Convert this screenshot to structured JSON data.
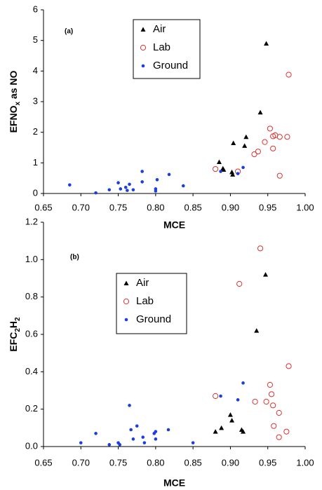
{
  "chart_data": [
    {
      "type": "scatter",
      "annotation": "(a)",
      "xlabel": "MCE",
      "ylabel": [
        {
          "text": "EFNO"
        },
        {
          "text": "x",
          "sub": true
        },
        {
          "text": " as NO"
        }
      ],
      "xlim": [
        0.65,
        1.0
      ],
      "xticks": [
        0.65,
        {
          "value": 0.7,
          "label": "0.70"
        },
        0.75,
        {
          "value": 0.8,
          "label": "0.80"
        },
        0.85,
        {
          "value": 0.9,
          "label": "0.90"
        },
        0.95,
        {
          "value": 1.0,
          "label": "1.00"
        }
      ],
      "ylim": [
        0,
        6
      ],
      "yticks": [
        0,
        1,
        2,
        3,
        4,
        5,
        6
      ],
      "series": [
        {
          "name": "Air",
          "color": "#000000",
          "marker": "triangle",
          "x": [
            0.885,
            0.891,
            0.89,
            0.904,
            0.902,
            0.903,
            0.919,
            0.921,
            0.94,
            0.948
          ],
          "values": [
            1.03,
            0.78,
            0.82,
            1.65,
            0.7,
            0.62,
            1.56,
            1.85,
            2.65,
            4.9
          ]
        },
        {
          "name": "Lab",
          "color": "#e03030",
          "marker": "circle-open",
          "x": [
            0.88,
            0.91,
            0.932,
            0.937,
            0.946,
            0.953,
            0.957,
            0.957,
            0.96,
            0.966,
            0.966,
            0.976,
            0.978
          ],
          "values": [
            0.8,
            0.72,
            1.28,
            1.37,
            1.68,
            2.12,
            1.47,
            1.87,
            1.9,
            1.85,
            0.58,
            1.85,
            3.88
          ]
        },
        {
          "name": "Ground",
          "color": "#1a3fe0",
          "marker": "dot",
          "x": [
            0.685,
            0.72,
            0.738,
            0.75,
            0.753,
            0.76,
            0.762,
            0.765,
            0.77,
            0.782,
            0.782,
            0.8,
            0.8,
            0.802,
            0.818,
            0.837,
            0.887,
            0.91,
            0.917
          ],
          "values": [
            0.28,
            0.02,
            0.12,
            0.35,
            0.15,
            0.2,
            0.1,
            0.3,
            0.12,
            0.72,
            0.38,
            0.15,
            0.08,
            0.45,
            0.62,
            0.25,
            0.72,
            0.65,
            0.85
          ]
        }
      ]
    },
    {
      "type": "scatter",
      "annotation": "(b)",
      "xlabel": "MCE",
      "ylabel": [
        {
          "text": "EFC"
        },
        {
          "text": "2",
          "sub": true
        },
        {
          "text": "H"
        },
        {
          "text": "2",
          "sub": true
        }
      ],
      "xlim": [
        0.65,
        1.0
      ],
      "xticks": [
        0.65,
        {
          "value": 0.7,
          "label": "0.70"
        },
        0.75,
        {
          "value": 0.8,
          "label": "0.80"
        },
        0.85,
        {
          "value": 0.9,
          "label": "0.90"
        },
        0.95,
        {
          "value": 1.0,
          "label": "1.00"
        }
      ],
      "ylim": [
        0,
        1.2
      ],
      "yticks": [
        {
          "value": 0,
          "label": "0.0"
        },
        0.2,
        0.4,
        0.6,
        0.8,
        {
          "value": 1.0,
          "label": "1.0"
        },
        1.2
      ],
      "series": [
        {
          "name": "Air",
          "color": "#000000",
          "marker": "triangle",
          "x": [
            0.88,
            0.888,
            0.9,
            0.902,
            0.915,
            0.917,
            0.935,
            0.947
          ],
          "values": [
            0.08,
            0.1,
            0.17,
            0.14,
            0.09,
            0.08,
            0.62,
            0.92
          ]
        },
        {
          "name": "Lab",
          "color": "#e03030",
          "marker": "circle-open",
          "x": [
            0.88,
            0.912,
            0.933,
            0.94,
            0.948,
            0.953,
            0.955,
            0.957,
            0.958,
            0.965,
            0.965,
            0.975,
            0.978
          ],
          "values": [
            0.27,
            0.87,
            0.24,
            1.06,
            0.24,
            0.33,
            0.28,
            0.22,
            0.11,
            0.05,
            0.18,
            0.08,
            0.43
          ]
        },
        {
          "name": "Ground",
          "color": "#1a3fe0",
          "marker": "dot",
          "x": [
            0.7,
            0.72,
            0.738,
            0.75,
            0.752,
            0.765,
            0.767,
            0.77,
            0.775,
            0.783,
            0.785,
            0.798,
            0.8,
            0.8,
            0.817,
            0.85,
            0.887,
            0.91,
            0.917
          ],
          "values": [
            0.02,
            0.07,
            0.01,
            0.02,
            0.01,
            0.22,
            0.09,
            0.04,
            0.11,
            0.05,
            0.02,
            0.07,
            0.04,
            0.08,
            0.09,
            0.02,
            0.27,
            0.25,
            0.34
          ]
        }
      ]
    }
  ]
}
